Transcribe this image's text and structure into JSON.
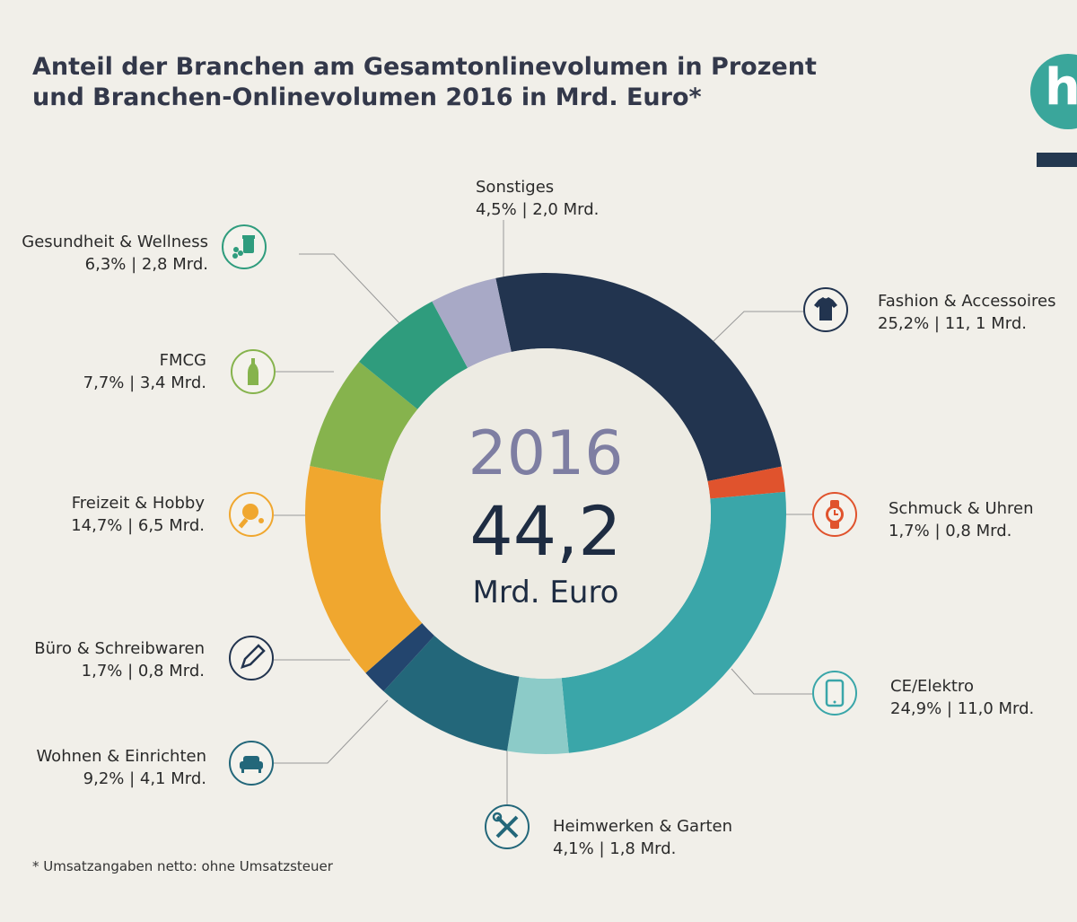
{
  "header": {
    "title_line1": "Anteil der Branchen am Gesamtonlinevolumen in Prozent",
    "title_line2": "und Branchen-Onlinevolumen 2016 in Mrd. Euro*",
    "logo_letter": "h"
  },
  "center": {
    "year": "2016",
    "total": "44,2",
    "unit": "Mrd. Euro"
  },
  "chart_data": {
    "type": "pie",
    "title": "Anteil der Branchen am Gesamtonlinevolumen in Prozent und Branchen-Onlinevolumen 2016 in Mrd. Euro*",
    "unit": "Mrd. Euro",
    "total": 44.2,
    "slices": [
      {
        "key": "fashion",
        "label": "Fashion & Accessoires",
        "percent": 25.2,
        "value": 11.1,
        "text": "25,2% | 11, 1 Mrd.",
        "color": "#22344f"
      },
      {
        "key": "schmuck",
        "label": "Schmuck & Uhren",
        "percent": 1.7,
        "value": 0.8,
        "text": "1,7% | 0,8 Mrd.",
        "color": "#e0532d"
      },
      {
        "key": "ce",
        "label": "CE/Elektro",
        "percent": 24.9,
        "value": 11.0,
        "text": "24,9% | 11,0 Mrd.",
        "color": "#3aa6a9"
      },
      {
        "key": "heimwerken",
        "label": "Heimwerken & Garten",
        "percent": 4.1,
        "value": 1.8,
        "text": "4,1% | 1,8 Mrd.",
        "color": "#8ccbc8"
      },
      {
        "key": "wohnen",
        "label": "Wohnen & Einrichten",
        "percent": 9.2,
        "value": 4.1,
        "text": "9,2% | 4,1 Mrd.",
        "color": "#23677a"
      },
      {
        "key": "buero",
        "label": "Büro & Schreibwaren",
        "percent": 1.7,
        "value": 0.8,
        "text": "1,7% | 0,8 Mrd.",
        "color": "#23456e"
      },
      {
        "key": "freizeit",
        "label": "Freizeit & Hobby",
        "percent": 14.7,
        "value": 6.5,
        "text": "14,7% | 6,5 Mrd.",
        "color": "#f0a72f"
      },
      {
        "key": "fmcg",
        "label": "FMCG",
        "percent": 7.7,
        "value": 3.4,
        "text": "7,7% | 3,4 Mrd.",
        "color": "#86b34d"
      },
      {
        "key": "gesundheit",
        "label": "Gesundheit & Wellness",
        "percent": 6.3,
        "value": 2.8,
        "text": "6,3% | 2,8 Mrd.",
        "color": "#2f9c7d"
      },
      {
        "key": "sonstiges",
        "label": "Sonstiges",
        "percent": 4.5,
        "value": 2.0,
        "text": "4,5% | 2,0 Mrd.",
        "color": "#a8a9c6"
      }
    ]
  },
  "footnote": "* Umsatzangaben netto: ohne Umsatzsteuer"
}
